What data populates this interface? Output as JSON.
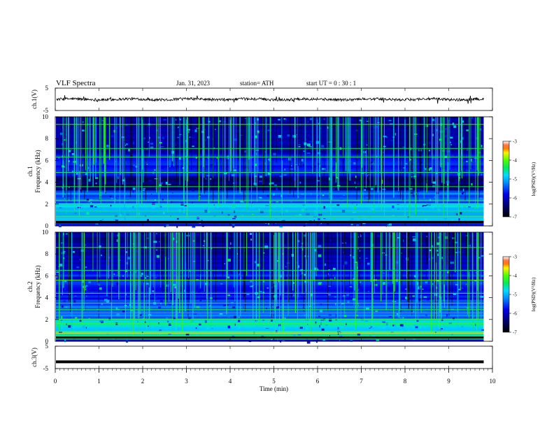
{
  "header": {
    "title": "VLF  Spectra",
    "date": "Jan. 31, 2023",
    "station": "station= ATH",
    "start_ut": "start  UT  =    0  : 30 : 1"
  },
  "chart_data": [
    {
      "type": "line",
      "ylabel": "ch.1(V)",
      "ylim": [
        -5,
        5
      ],
      "yticks": [
        "5",
        "-5"
      ],
      "description_series": "continuous noisy voltage trace centred near 0 V",
      "color": "#000000"
    },
    {
      "type": "heatmap",
      "ylabel_line1": "ch.1",
      "ylabel_line2": "Frequency (kHz)",
      "ylim": [
        0,
        10
      ],
      "yticks": [
        "0",
        "2",
        "4",
        "6",
        "8",
        "10"
      ],
      "xlim": [
        0,
        10
      ],
      "colorbar": {
        "label": "log(PSD)(V²/Hz)",
        "range": [
          -7,
          -3
        ],
        "ticks": [
          "-3",
          "-4",
          "-5",
          "-6",
          "-7"
        ],
        "colors": [
          "#000000",
          "#0000ff",
          "#00b4ff",
          "#00ff00",
          "#ffff00",
          "#ff0000",
          "#ffffff"
        ]
      }
    },
    {
      "type": "heatmap",
      "ylabel_line1": "ch.2",
      "ylabel_line2": "Frequency (kHz)",
      "ylim": [
        0,
        10
      ],
      "yticks": [
        "0",
        "2",
        "4",
        "6",
        "8",
        "10"
      ],
      "xlim": [
        0,
        10
      ],
      "colorbar": {
        "label": "log(PSD)(V²/Hz)",
        "range": [
          -7,
          -3
        ],
        "ticks": [
          "-3",
          "-4",
          "-5",
          "-6",
          "-7"
        ],
        "colors": [
          "#000000",
          "#0000ff",
          "#00b4ff",
          "#00ff00",
          "#ffff00",
          "#ff0000",
          "#ffffff"
        ]
      }
    },
    {
      "type": "line",
      "ylabel": "ch.3(V)",
      "ylim": [
        -5,
        5
      ],
      "yticks": [
        "5",
        "-5"
      ],
      "constant_value": -2,
      "color": "#000000"
    }
  ],
  "xaxis": {
    "label": "Time  (min)",
    "range": [
      0,
      10
    ],
    "ticks": [
      "0",
      "1",
      "2",
      "3",
      "4",
      "5",
      "6",
      "7",
      "8",
      "9",
      "10"
    ],
    "data_end": 9.8
  }
}
